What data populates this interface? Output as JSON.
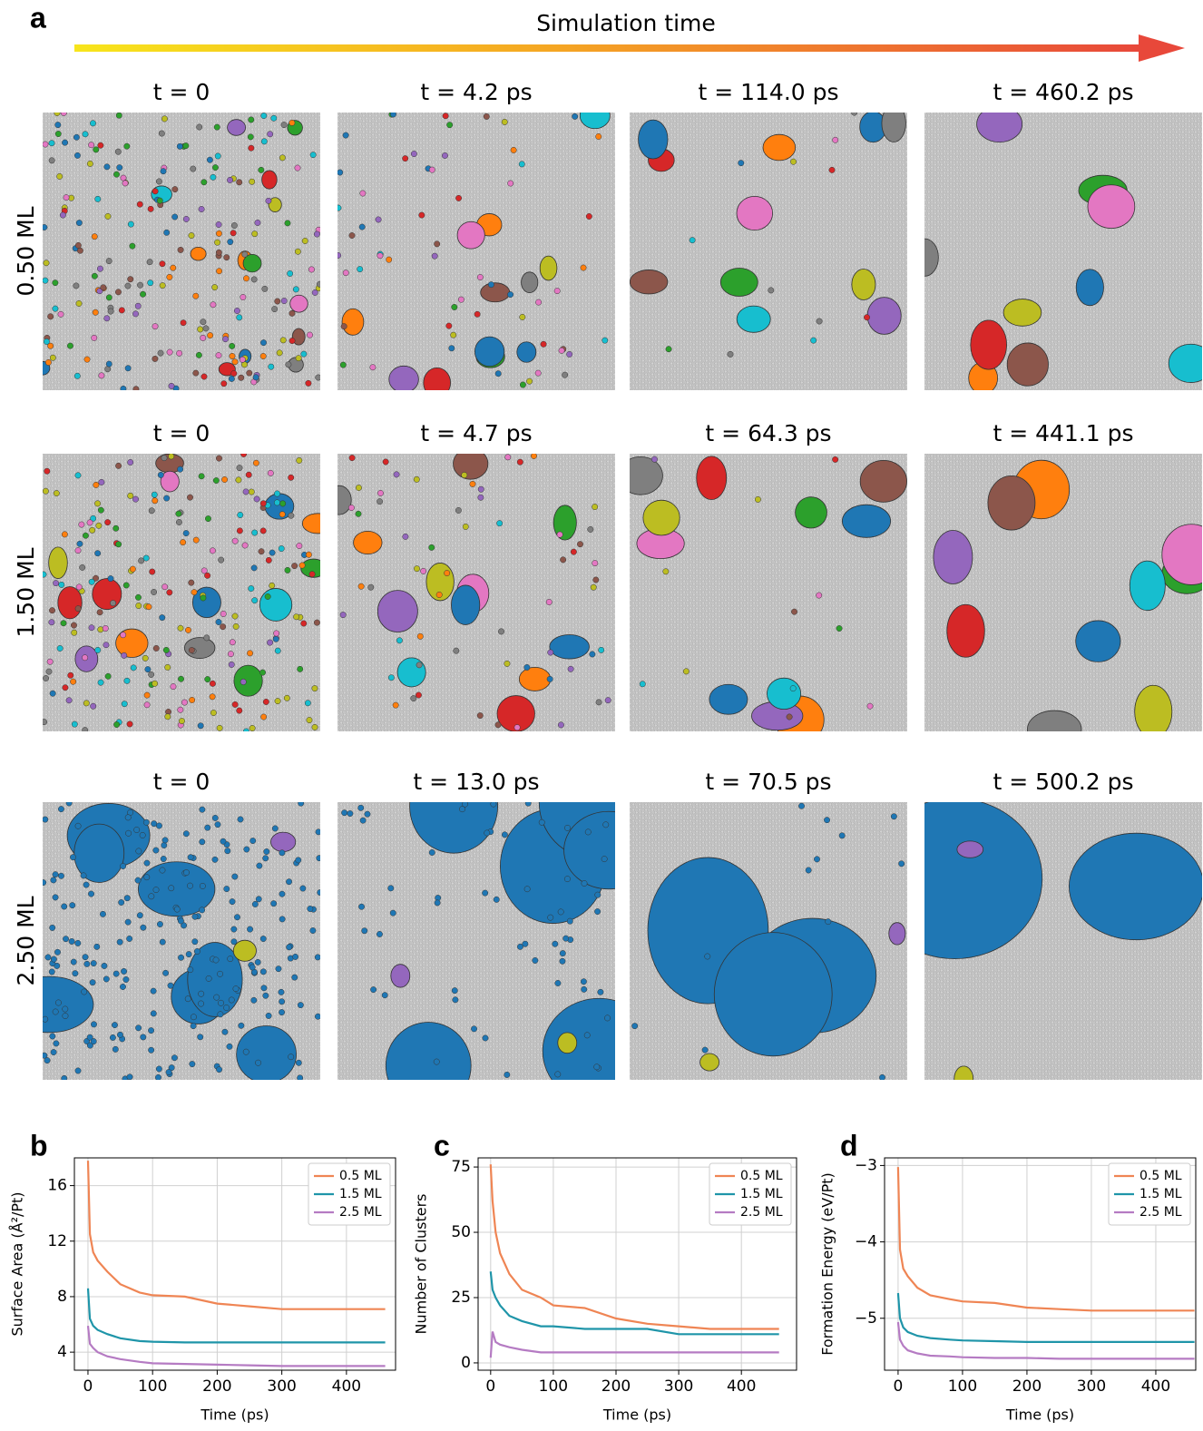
{
  "figure": {
    "panel_label": "a",
    "arrow_label": "Simulation time",
    "rows": [
      {
        "label": "0.50 ML",
        "times": [
          "t = 0",
          "t = 4.2 ps",
          "t = 114.0 ps",
          "t = 460.2 ps"
        ]
      },
      {
        "label": "1.50 ML",
        "times": [
          "t = 0",
          "t = 4.7 ps",
          "t = 64.3 ps",
          "t = 441.1 ps"
        ]
      },
      {
        "label": "2.50 ML",
        "times": [
          "t = 0",
          "t = 13.0 ps",
          "t = 70.5 ps",
          "t = 500.2 ps"
        ]
      }
    ]
  },
  "chart_data": [
    {
      "type": "line",
      "panel_label": "b",
      "xlabel": "Time (ps)",
      "ylabel": "Surface Area (Å²/Pt)",
      "x": [
        0,
        3,
        8,
        15,
        30,
        50,
        80,
        100,
        150,
        200,
        250,
        300,
        350,
        400,
        460
      ],
      "xlim": [
        -21,
        476
      ],
      "xticks": [
        0,
        100,
        200,
        300,
        400
      ],
      "ylim": [
        2.7,
        18.0
      ],
      "yticks": [
        4,
        8,
        12,
        16
      ],
      "grid": true,
      "legend": "upper right",
      "series": [
        {
          "name": "0.5 ML",
          "color": "#ef8554",
          "values": [
            17.8,
            12.5,
            11.2,
            10.6,
            9.8,
            8.9,
            8.3,
            8.1,
            8.0,
            7.5,
            7.3,
            7.1,
            7.1,
            7.1,
            7.1
          ]
        },
        {
          "name": "1.5 ML",
          "color": "#1f95a9",
          "values": [
            8.6,
            6.4,
            5.9,
            5.6,
            5.3,
            5.0,
            4.8,
            4.75,
            4.7,
            4.7,
            4.7,
            4.7,
            4.7,
            4.7,
            4.7
          ]
        },
        {
          "name": "2.5 ML",
          "color": "#b57bc3",
          "values": [
            5.9,
            4.6,
            4.3,
            4.0,
            3.7,
            3.5,
            3.3,
            3.2,
            3.15,
            3.1,
            3.05,
            3.0,
            3.0,
            3.0,
            3.0
          ]
        }
      ]
    },
    {
      "type": "line",
      "panel_label": "c",
      "xlabel": "Time (ps)",
      "ylabel": "Number of Clusters",
      "x": [
        0,
        3,
        8,
        15,
        30,
        50,
        80,
        100,
        150,
        200,
        250,
        300,
        350,
        400,
        460
      ],
      "xlim": [
        -20,
        488
      ],
      "xticks": [
        0,
        100,
        200,
        300,
        400
      ],
      "ylim": [
        -2.8,
        78.5
      ],
      "yticks": [
        0,
        25,
        50,
        75
      ],
      "grid": true,
      "legend": "upper right",
      "series": [
        {
          "name": "0.5 ML",
          "color": "#ef8554",
          "values": [
            76,
            62,
            50,
            42,
            34,
            28,
            25,
            22,
            21,
            17,
            15,
            14,
            13,
            13,
            13
          ]
        },
        {
          "name": "1.5 ML",
          "color": "#1f95a9",
          "values": [
            35,
            28,
            25,
            22,
            18,
            16,
            14,
            14,
            13,
            13,
            13,
            11,
            11,
            11,
            11
          ]
        },
        {
          "name": "2.5 ML",
          "color": "#b57bc3",
          "values": [
            2,
            12,
            8,
            7,
            6,
            5,
            4,
            4,
            4,
            4,
            4,
            4,
            4,
            4,
            4
          ]
        }
      ]
    },
    {
      "type": "line",
      "panel_label": "d",
      "xlabel": "Time (ps)",
      "ylabel": "Formation Energy (eV/Pt)",
      "x": [
        0,
        3,
        8,
        15,
        30,
        50,
        80,
        100,
        150,
        200,
        250,
        300,
        350,
        400,
        460
      ],
      "xlim": [
        -21,
        462
      ],
      "xticks": [
        0,
        100,
        200,
        300,
        400
      ],
      "ylim": [
        -5.68,
        -2.9
      ],
      "yticks": [
        {
          "value": -5,
          "label": "−5"
        },
        {
          "value": -4,
          "label": "−4"
        },
        {
          "value": -3,
          "label": "−3"
        }
      ],
      "grid": true,
      "legend": "upper right",
      "series": [
        {
          "name": "0.5 ML",
          "color": "#ef8554",
          "values": [
            -3.02,
            -4.1,
            -4.35,
            -4.45,
            -4.6,
            -4.7,
            -4.75,
            -4.78,
            -4.8,
            -4.86,
            -4.88,
            -4.9,
            -4.9,
            -4.9,
            -4.9
          ]
        },
        {
          "name": "1.5 ML",
          "color": "#1f95a9",
          "values": [
            -4.67,
            -5.0,
            -5.12,
            -5.18,
            -5.23,
            -5.26,
            -5.28,
            -5.29,
            -5.3,
            -5.31,
            -5.31,
            -5.31,
            -5.31,
            -5.31,
            -5.31
          ]
        },
        {
          "name": "2.5 ML",
          "color": "#b57bc3",
          "values": [
            -5.05,
            -5.28,
            -5.36,
            -5.42,
            -5.46,
            -5.49,
            -5.5,
            -5.51,
            -5.52,
            -5.52,
            -5.53,
            -5.53,
            -5.53,
            -5.53,
            -5.53
          ]
        }
      ]
    }
  ]
}
